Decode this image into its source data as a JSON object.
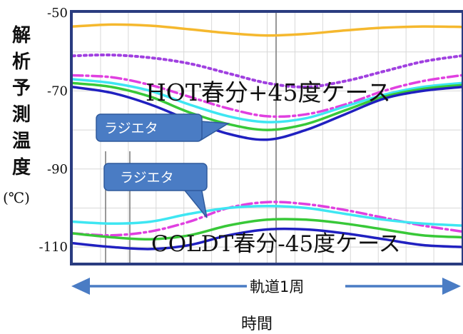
{
  "chart_data": {
    "type": "line",
    "ylabel_chars": [
      "解",
      "析",
      "予",
      "測",
      "温",
      "度"
    ],
    "ylabel_unit": "(℃)",
    "yticks": [
      "-50",
      "-70",
      "-90",
      "-110"
    ],
    "ylim": [
      -114,
      -50
    ],
    "xlabel": "時間",
    "span_label": "軌道1周",
    "grid": true,
    "colors": {
      "orange": "#f5b82e",
      "purple": "#a040e0",
      "magenta": "#e040e0",
      "cyan": "#3ee6f2",
      "green": "#38c838",
      "blue": "#2020c0",
      "callout": "#4a7cc4",
      "arrow": "#4a7cc4",
      "frame": "#2a3c80"
    },
    "cases": [
      {
        "label": "HOT春分+45度ケース",
        "callout": "ラジエタ",
        "x": [
          0,
          0.1,
          0.2,
          0.3,
          0.4,
          0.5,
          0.6,
          0.7,
          0.8,
          0.9,
          1.0
        ],
        "series": [
          {
            "color": "orange",
            "style": "solid",
            "values": [
              -53.5,
              -53.0,
              -53.3,
              -54.2,
              -55.2,
              -55.8,
              -55.4,
              -54.5,
              -53.8,
              -53.5,
              -53.6
            ]
          },
          {
            "color": "purple",
            "style": "dotted",
            "values": [
              -61.0,
              -60.8,
              -61.5,
              -63.0,
              -65.5,
              -68.0,
              -69.0,
              -67.5,
              -65.0,
              -62.5,
              -61.0
            ]
          },
          {
            "color": "magenta",
            "style": "dashdot",
            "values": [
              -66.0,
              -66.5,
              -68.5,
              -71.5,
              -74.5,
              -76.5,
              -76.0,
              -73.5,
              -70.0,
              -67.5,
              -66.0
            ]
          },
          {
            "color": "cyan",
            "style": "solid",
            "values": [
              -67.0,
              -68.0,
              -70.0,
              -73.5,
              -76.5,
              -78.0,
              -77.0,
              -74.0,
              -71.0,
              -69.0,
              -68.0
            ]
          },
          {
            "color": "green",
            "style": "solid",
            "values": [
              -68.0,
              -69.0,
              -71.5,
              -75.5,
              -78.5,
              -80.0,
              -78.5,
              -75.0,
              -71.5,
              -69.5,
              -68.5
            ]
          },
          {
            "color": "blue",
            "style": "solid",
            "values": [
              -69.0,
              -70.5,
              -73.5,
              -77.5,
              -81.0,
              -82.5,
              -80.0,
              -76.0,
              -72.0,
              -70.0,
              -69.0
            ]
          }
        ]
      },
      {
        "label": "COLDT春分-45度ケース",
        "callout": "ラジエタ",
        "x": [
          0,
          0.1,
          0.2,
          0.3,
          0.4,
          0.5,
          0.6,
          0.7,
          0.8,
          0.9,
          1.0
        ],
        "series": [
          {
            "color": "magenta",
            "style": "dashdot",
            "values": [
              -106.5,
              -107.0,
              -106.0,
              -103.5,
              -100.0,
              -98.5,
              -99.0,
              -100.5,
              -102.5,
              -104.5,
              -106.0
            ]
          },
          {
            "color": "cyan",
            "style": "solid",
            "values": [
              -103.5,
              -104.0,
              -103.5,
              -101.5,
              -100.0,
              -99.5,
              -100.0,
              -101.5,
              -103.0,
              -104.0,
              -104.5
            ]
          },
          {
            "color": "green",
            "style": "solid",
            "values": [
              -106.5,
              -107.5,
              -108.0,
              -107.0,
              -104.5,
              -103.0,
              -103.0,
              -104.0,
              -105.5,
              -107.0,
              -107.5
            ]
          },
          {
            "color": "blue",
            "style": "solid",
            "values": [
              -109.0,
              -110.0,
              -110.5,
              -109.5,
              -107.0,
              -105.5,
              -105.5,
              -106.5,
              -108.0,
              -109.5,
              -110.0
            ]
          }
        ]
      }
    ]
  }
}
